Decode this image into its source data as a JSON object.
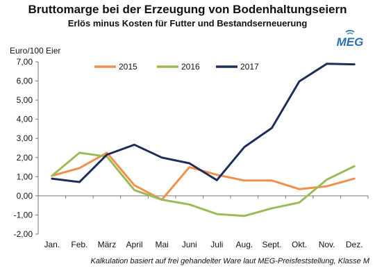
{
  "header": {
    "title": "Bruttomarge bei der Erzeugung von Bodenhaltungseiern",
    "subtitle": "Erlös minus Kosten für Futter und Bestandserneuerung",
    "logo_text": "MEG"
  },
  "footnote": "Kalkulation basiert auf frei gehandelter Ware laut MEG-Preisfeststellung, Klasse M",
  "colors": {
    "s2015": "#F0904A",
    "s2016": "#9BBB59",
    "s2017": "#1F2D5C",
    "logo": "#2A6FB7"
  },
  "chart_data": {
    "type": "line",
    "title": "Bruttomarge bei der Erzeugung von Bodenhaltungseiern",
    "subtitle": "Erlös minus Kosten für Futter und Bestandserneuerung",
    "ylabel": "Euro/100 Eier",
    "xlabel": "",
    "categories": [
      "Jan.",
      "Feb.",
      "März",
      "April",
      "Mai",
      "Juni",
      "Juli",
      "Aug.",
      "Sept.",
      "Okt.",
      "Nov.",
      "Dez."
    ],
    "ylim": [
      -2,
      7
    ],
    "yticks": [
      "-2,00",
      "-1,00",
      "0,00",
      "1,00",
      "2,00",
      "3,00",
      "4,00",
      "5,00",
      "6,00",
      "7,00"
    ],
    "legend_position": "top",
    "grid": false,
    "series": [
      {
        "name": "2015",
        "values": [
          1.05,
          1.45,
          2.25,
          0.55,
          -0.2,
          1.5,
          1.1,
          0.8,
          0.8,
          0.35,
          0.5,
          0.9
        ]
      },
      {
        "name": "2016",
        "values": [
          1.05,
          2.25,
          2.05,
          0.3,
          -0.2,
          -0.45,
          -0.95,
          -1.05,
          -0.65,
          -0.35,
          0.85,
          1.55
        ]
      },
      {
        "name": "2017",
        "values": [
          0.9,
          0.72,
          2.15,
          2.67,
          2.0,
          1.7,
          0.82,
          2.55,
          3.55,
          5.98,
          6.9,
          6.87
        ]
      }
    ]
  }
}
